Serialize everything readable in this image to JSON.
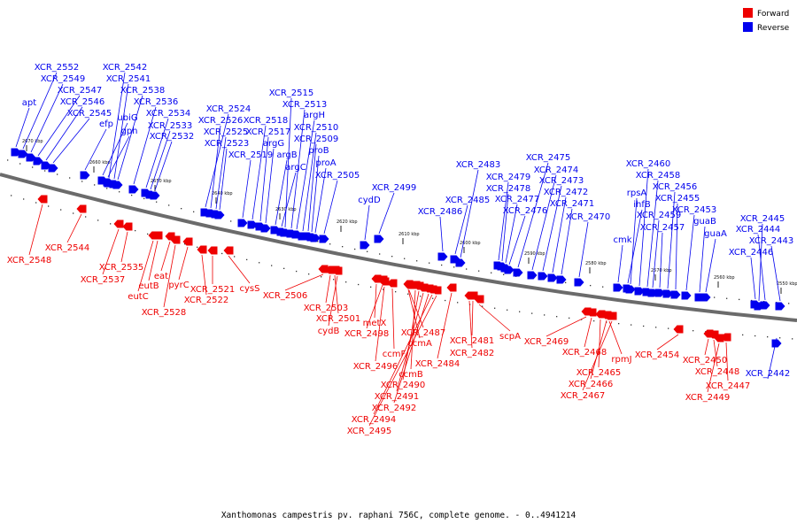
{
  "legend": {
    "forward": {
      "label": "Forward",
      "color": "#ee0000"
    },
    "reverse": {
      "label": "Reverse",
      "color": "#0000ee"
    }
  },
  "caption": "Xanthomonas campestris pv. raphani 756C, complete genome. - 0..4941214",
  "ticks": [
    "2670 kbp",
    "2660 kbp",
    "2650 kbp",
    "2640 kbp",
    "2630 kbp",
    "2620 kbp",
    "2610 kbp",
    "2600 kbp",
    "2590 kbp",
    "2580 kbp",
    "2570 kbp",
    "2560 kbp",
    "2550 kbp"
  ],
  "reverse_genes": [
    "apt",
    "XCR_2552",
    "XCR_2549",
    "XCR_2547",
    "XCR_2546",
    "XCR_2545",
    "efp",
    "ubiG",
    "gph",
    "XCR_2542",
    "XCR_2541",
    "XCR_2538",
    "XCR_2536",
    "XCR_2534",
    "XCR_2533",
    "XCR_2532",
    "XCR_2524",
    "XCR_2526",
    "XCR_2525",
    "XCR_2523",
    "XCR_2519",
    "XCR_2518",
    "XCR_2517",
    "argG",
    "argB",
    "argC",
    "XCR_2515",
    "XCR_2513",
    "argH",
    "XCR_2510",
    "XCR_2509",
    "proB",
    "proA",
    "XCR_2505",
    "cydD",
    "XCR_2499",
    "XCR_2486",
    "XCR_2485",
    "XCR_2483",
    "XCR_2479",
    "XCR_2478",
    "XCR_2477",
    "XCR_2476",
    "XCR_2475",
    "XCR_2474",
    "XCR_2473",
    "XCR_2472",
    "XCR_2471",
    "XCR_2470",
    "cmk",
    "ihfB",
    "rpsA",
    "XCR_2460",
    "XCR_2458",
    "XCR_2459",
    "XCR_2457",
    "XCR_2456",
    "XCR_2455",
    "XCR_2453",
    "guaB",
    "guaA",
    "XCR_2446",
    "XCR_2445",
    "XCR_2444",
    "XCR_2443",
    "XCR_2442"
  ],
  "forward_genes": [
    "XCR_2548",
    "XCR_2544",
    "XCR_2535",
    "XCR_2537",
    "eat",
    "eutB",
    "eutC",
    "pyrC",
    "XCR_2528",
    "XCR_2522",
    "XCR_2521",
    "cysS",
    "XCR_2506",
    "XCR_2503",
    "XCR_2501",
    "cydB",
    "metX",
    "XCR_2498",
    "XCR_2496",
    "ccmF",
    "ccmA",
    "XCR_2487",
    "ccmB",
    "XCR_2490",
    "XCR_2491",
    "XCR_2492",
    "XCR_2494",
    "XCR_2495",
    "XCR_2484",
    "XCR_2481",
    "XCR_2482",
    "scpA",
    "XCR_2469",
    "XCR_2468",
    "XCR_2465",
    "XCR_2466",
    "XCR_2467",
    "rpmJ",
    "XCR_2454",
    "XCR_2450",
    "XCR_2448",
    "XCR_2447",
    "XCR_2449"
  ]
}
